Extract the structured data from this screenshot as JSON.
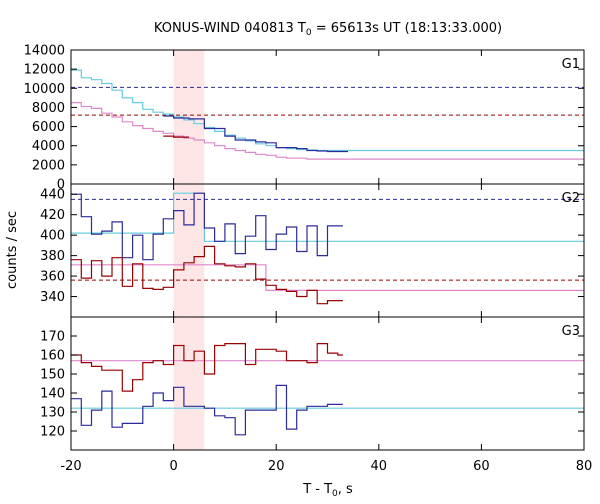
{
  "chart_data": {
    "type": "line",
    "title": "KONUS-WIND 040813 T",
    "title_sub": "0",
    "title_rest": " = 65613s UT (18:13:33.000)",
    "xlabel": "T - T",
    "xlabel_sub": "0",
    "xlabel_rest": ", s",
    "ylabel": "counts / sec",
    "xlim": [
      -20,
      80
    ],
    "x_ticks": [
      "-20",
      "0",
      "20",
      "40",
      "60",
      "80"
    ],
    "highlight_interval": [
      0,
      6
    ],
    "highlight_color": "#ffe6e6",
    "colors": {
      "blue": "#2b2b9b",
      "cyan": "#66ccdd",
      "darkred": "#990000",
      "pink": "#dd88cc"
    },
    "panels": [
      {
        "name": "G1",
        "ylim": [
          0,
          14000
        ],
        "y_ticks": [
          "0",
          "2000",
          "4000",
          "6000",
          "8000",
          "10000",
          "12000",
          "14000"
        ],
        "dashed_levels": [
          {
            "y": 10100,
            "color": "blue"
          },
          {
            "y": 7200,
            "color": "darkred"
          }
        ],
        "series": [
          {
            "color": "cyan",
            "x": [
              -20,
              -18,
              -16,
              -14,
              -12,
              -10,
              -8,
              -6,
              -4,
              -2,
              0,
              2,
              4,
              6,
              8,
              10,
              12,
              14,
              16,
              18,
              20,
              22,
              24,
              26,
              28,
              30,
              32,
              34,
              80
            ],
            "y": [
              11900,
              11100,
              10900,
              10500,
              9800,
              9000,
              8500,
              7800,
              7500,
              7300,
              7000,
              6700,
              6300,
              5900,
              5500,
              5100,
              4800,
              4500,
              4200,
              4000,
              3800,
              3700,
              3600,
              3550,
              3500,
              3500,
              3500,
              3500,
              3500
            ]
          },
          {
            "color": "pink",
            "x": [
              -20,
              -18,
              -16,
              -14,
              -12,
              -10,
              -8,
              -6,
              -4,
              -2,
              0,
              2,
              4,
              6,
              8,
              10,
              12,
              14,
              16,
              18,
              20,
              22,
              24,
              26,
              28,
              30,
              32,
              34,
              80
            ],
            "y": [
              8500,
              8100,
              7900,
              7400,
              7000,
              6500,
              6100,
              5800,
              5500,
              5300,
              5000,
              4800,
              4600,
              4300,
              4000,
              3700,
              3500,
              3300,
              3100,
              3000,
              2800,
              2700,
              2700,
              2600,
              2600,
              2600,
              2600,
              2600,
              2600
            ]
          },
          {
            "color": "darkred",
            "x": [
              -2,
              0,
              3
            ],
            "y": [
              5000,
              4900,
              4900
            ]
          },
          {
            "color": "blue",
            "x": [
              -2,
              0,
              3,
              6,
              10,
              12,
              14,
              16,
              18,
              20,
              24,
              26,
              28,
              30,
              32,
              34
            ],
            "y": [
              7100,
              6900,
              6800,
              5800,
              5000,
              4600,
              4600,
              4400,
              4300,
              3800,
              3700,
              3500,
              3450,
              3400,
              3400,
              3400
            ]
          }
        ]
      },
      {
        "name": "G2",
        "ylim": [
          320,
          450
        ],
        "y_ticks": [
          "320",
          "340",
          "360",
          "380",
          "400",
          "420",
          "440"
        ],
        "dashed_levels": [
          {
            "y": 435,
            "color": "blue"
          },
          {
            "y": 356,
            "color": "darkred"
          }
        ],
        "series": [
          {
            "color": "cyan",
            "x": [
              -20,
              -18,
              -14,
              -6,
              0,
              6,
              80
            ],
            "y": [
              402,
              402,
              402,
              402,
              441,
              394,
              394
            ]
          },
          {
            "color": "pink",
            "x": [
              -20,
              -18,
              0,
              12,
              18,
              80
            ],
            "y": [
              371,
              371,
              371,
              371,
              346,
              346
            ]
          },
          {
            "color": "blue",
            "x": [
              -20,
              -18,
              -16,
              -14,
              -12,
              -10,
              -8,
              -6,
              -4,
              -2,
              0,
              2,
              4,
              6,
              8,
              10,
              12,
              14,
              16,
              18,
              20,
              22,
              24,
              26,
              28,
              30,
              32,
              33
            ],
            "y": [
              440,
              418,
              401,
              404,
              413,
              378,
              400,
              376,
              401,
              416,
              424,
              410,
              441,
              407,
              394,
              411,
              382,
              399,
              419,
              386,
              401,
              408,
              384,
              409,
              380,
              409,
              409,
              409
            ]
          },
          {
            "color": "darkred",
            "x": [
              -20,
              -18,
              -16,
              -14,
              -12,
              -10,
              -8,
              -6,
              -4,
              -2,
              0,
              2,
              4,
              6,
              8,
              10,
              12,
              14,
              16,
              18,
              20,
              22,
              24,
              26,
              28,
              30,
              32,
              33
            ],
            "y": [
              376,
              358,
              375,
              360,
              378,
              350,
              372,
              348,
              347,
              349,
              366,
              373,
              379,
              389,
              372,
              370,
              369,
              372,
              357,
              351,
              347,
              345,
              340,
              346,
              333,
              336,
              336,
              336
            ]
          }
        ]
      },
      {
        "name": "G3",
        "ylim": [
          110,
          180
        ],
        "y_ticks": [
          "110",
          "120",
          "130",
          "140",
          "150",
          "160",
          "170"
        ],
        "dashed_levels": [],
        "series": [
          {
            "color": "pink",
            "x": [
              -20,
              80
            ],
            "y": [
              157,
              157
            ]
          },
          {
            "color": "cyan",
            "x": [
              -20,
              80
            ],
            "y": [
              132,
              132
            ]
          },
          {
            "color": "darkred",
            "x": [
              -20,
              -18,
              -16,
              -14,
              -12,
              -10,
              -8,
              -6,
              -4,
              -2,
              0,
              2,
              4,
              6,
              8,
              10,
              12,
              14,
              16,
              18,
              20,
              22,
              24,
              26,
              28,
              30,
              32,
              33
            ],
            "y": [
              160,
              156,
              154,
              152,
              152,
              141,
              147,
              156,
              157,
              155,
              165,
              157,
              162,
              150,
              165,
              166,
              166,
              155,
              163,
              163,
              162,
              157,
              157,
              156,
              166,
              161,
              160,
              160
            ]
          },
          {
            "color": "blue",
            "x": [
              -20,
              -18,
              -16,
              -14,
              -12,
              -10,
              -8,
              -6,
              -4,
              -2,
              0,
              2,
              4,
              6,
              8,
              10,
              12,
              14,
              16,
              18,
              20,
              22,
              24,
              26,
              28,
              30,
              32,
              33
            ],
            "y": [
              137,
              123,
              131,
              141,
              122,
              124,
              124,
              133,
              140,
              136,
              143,
              133,
              133,
              132,
              128,
              127,
              118,
              131,
              131,
              131,
              144,
              121,
              131,
              133,
              133,
              134,
              134,
              134
            ]
          }
        ]
      }
    ]
  }
}
